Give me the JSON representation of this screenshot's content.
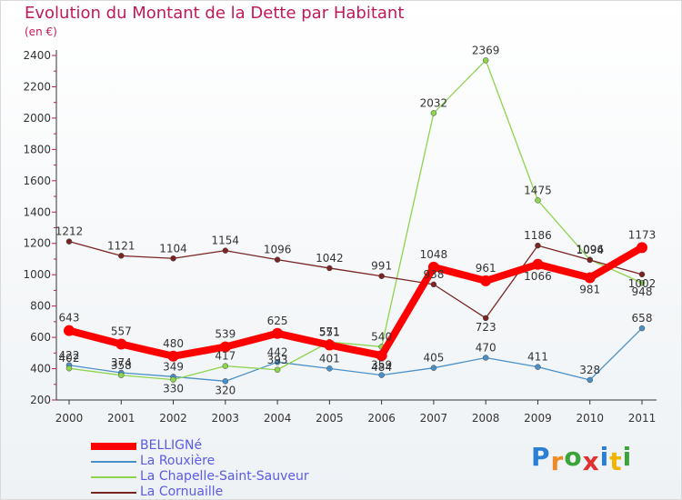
{
  "title": "Evolution du Montant de la Dette par Habitant",
  "unit": "(en €)",
  "logo": {
    "letters": [
      "P",
      "r",
      "o",
      "x",
      "i",
      "t",
      "i"
    ],
    "colors": [
      "#2a7fd4",
      "#f08a24",
      "#3aa43a",
      "#e03030",
      "#2a7fd4",
      "#f0b400",
      "#3aa43a"
    ]
  },
  "chart_data": {
    "type": "line",
    "x": [
      "2000",
      "2001",
      "2002",
      "2003",
      "2004",
      "2005",
      "2006",
      "2007",
      "2008",
      "2009",
      "2010",
      "2011"
    ],
    "ylim": [
      200,
      2400
    ],
    "yticks": [
      200,
      400,
      600,
      800,
      1000,
      1200,
      1400,
      1600,
      1800,
      2000,
      2200,
      2400
    ],
    "grid": false,
    "legend": "bottom-left",
    "series": [
      {
        "name": "La Rouxière",
        "color": "#4a90c8",
        "labelpos": [
          -1,
          -1,
          -1,
          1,
          -1,
          -1,
          -1,
          -1,
          -1,
          -1,
          -1,
          -1
        ],
        "values": [
          422,
          374,
          349,
          320,
          442,
          401,
          359,
          405,
          470,
          411,
          328,
          658
        ]
      },
      {
        "name": "La Chapelle-Saint-Sauveur",
        "color": "#8ed44f",
        "labelpos": [
          -1,
          -1,
          1,
          -1,
          -1,
          -1,
          -1,
          -1,
          -1,
          -1,
          -1,
          1
        ],
        "values": [
          402,
          358,
          330,
          417,
          393,
          571,
          540,
          2032,
          2369,
          1475,
          1096,
          948
        ]
      },
      {
        "name": "La Cornuaille",
        "color": "#7a2424",
        "labelpos": [
          -1,
          -1,
          -1,
          -1,
          -1,
          -1,
          -1,
          -1,
          1,
          -1,
          -1,
          1
        ],
        "values": [
          1212,
          1121,
          1104,
          1154,
          1096,
          1042,
          991,
          938,
          723,
          1186,
          1094,
          1002
        ]
      },
      {
        "name": "BELLIGNé",
        "color": "#ff0000",
        "labelpos": [
          -1,
          -1,
          -1,
          -1,
          -1,
          -1,
          1,
          -1,
          -1,
          1,
          1,
          -1
        ],
        "values": [
          643,
          557,
          480,
          539,
          625,
          551,
          484,
          1048,
          961,
          1066,
          981,
          1173
        ]
      }
    ]
  },
  "legend": [
    {
      "label": "BELLIGNé",
      "color": "#ff0000"
    },
    {
      "label": "La Rouxière",
      "color": "#4a90c8"
    },
    {
      "label": "La Chapelle-Saint-Sauveur",
      "color": "#8ed44f"
    },
    {
      "label": "La Cornuaille",
      "color": "#7a2424"
    }
  ]
}
